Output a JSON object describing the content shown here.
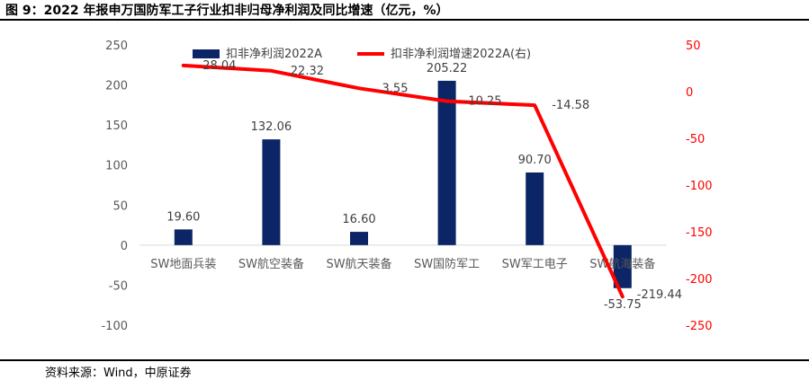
{
  "figure_title": "图 9：2022 年报申万国防军工子行业扣非归母净利润及同比增速（亿元，%）",
  "source": "资料来源：Wind，中原证券",
  "colors": {
    "bar": "#0b2566",
    "line": "#ff0000",
    "axis_left": "#595959",
    "axis_right": "#ff0000"
  },
  "chart_data": {
    "type": "bar",
    "categories": [
      "SW地面兵装",
      "SW航空装备",
      "SW航天装备",
      "SW国防军工",
      "SW军工电子",
      "SW航海装备"
    ],
    "series": [
      {
        "name": "扣非净利润2022A",
        "type": "bar",
        "axis": "left",
        "values": [
          19.6,
          132.06,
          16.6,
          205.22,
          90.7,
          -53.75
        ],
        "labels": [
          "19.60",
          "132.06",
          "16.60",
          "205.22",
          "90.70",
          "-53.75"
        ]
      },
      {
        "name": "扣非净利润增速2022A(右)",
        "type": "line",
        "axis": "right",
        "values": [
          28.04,
          22.32,
          3.55,
          -10.25,
          -14.58,
          -219.44
        ],
        "labels": [
          "28.04",
          "22.32",
          "3.55",
          "-10.25",
          "-14.58",
          "-219.44"
        ]
      }
    ],
    "ylim_left": [
      -100,
      250
    ],
    "yticks_left": [
      "250",
      "200",
      "150",
      "100",
      "50",
      "0",
      "-50",
      "-100"
    ],
    "ylim_right": [
      -250,
      50
    ],
    "yticks_right": [
      "50",
      "0",
      "-50",
      "-100",
      "-150",
      "-200",
      "-250"
    ],
    "legend": "top",
    "grid": false
  }
}
